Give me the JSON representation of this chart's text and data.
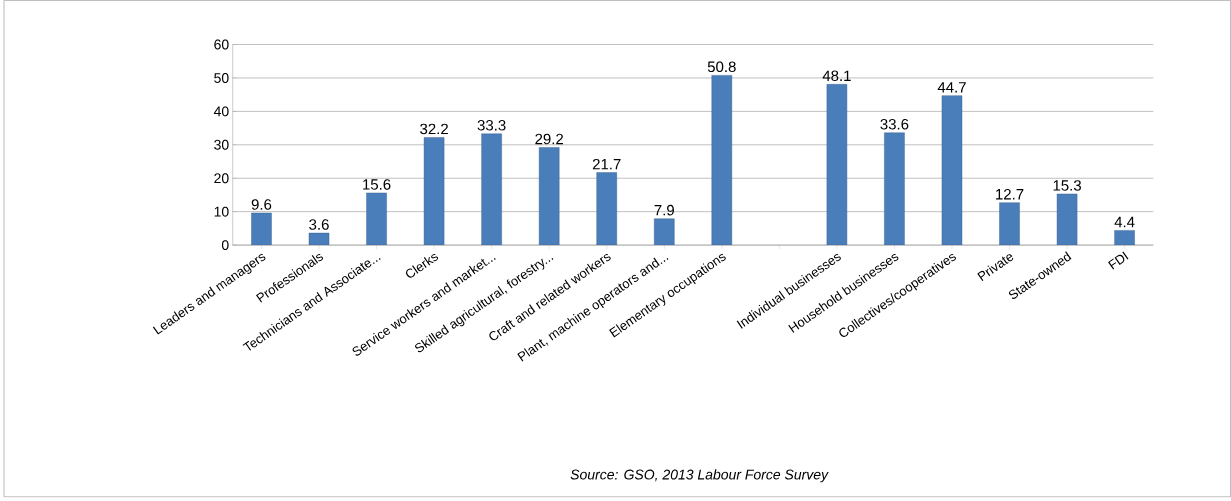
{
  "chart_data": {
    "type": "bar",
    "categories": [
      "Leaders and managers",
      "Professionals",
      "Technicians and Associate...",
      "Clerks",
      "Service workers and market...",
      "Skilled agricultural, forestry...",
      "Craft and related workers",
      "Plant, machine operators and...",
      "Elementary occupations",
      null,
      "Individual businesses",
      "Household businesses",
      "Collectives/cooperatives",
      "Private",
      "State-owned",
      "FDI"
    ],
    "values": [
      9.6,
      3.6,
      15.6,
      32.2,
      33.3,
      29.2,
      21.7,
      7.9,
      50.8,
      null,
      48.1,
      33.6,
      44.7,
      12.7,
      15.3,
      4.4
    ],
    "color": "#4a7ebb",
    "ylim": [
      0,
      60
    ],
    "yticks": [
      0,
      10,
      20,
      30,
      40,
      50,
      60
    ],
    "grid": "y",
    "data_labels": true,
    "annotations": [
      "Source: GSO, 2013 Labour Force Survey"
    ]
  }
}
